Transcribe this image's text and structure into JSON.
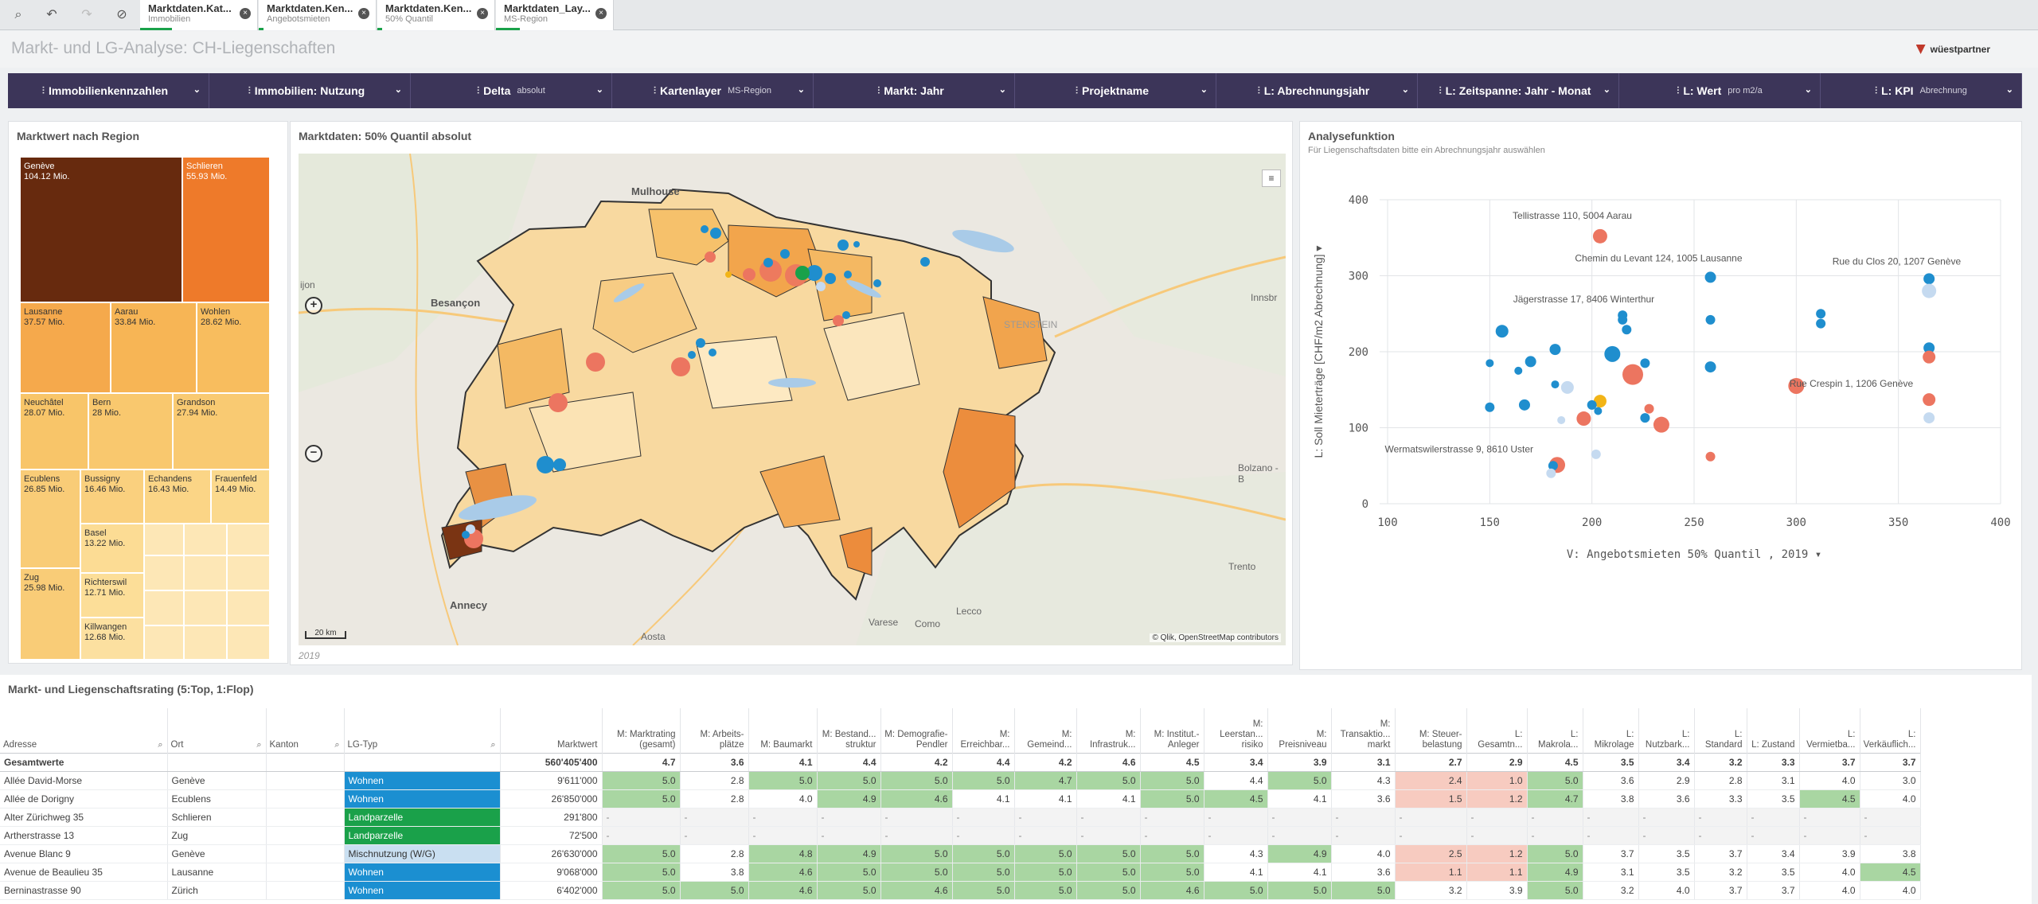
{
  "tabs": [
    {
      "title": "Marktdaten.Kat...",
      "sub": "Immobilien"
    },
    {
      "title": "Marktdaten.Ken...",
      "sub": "Angebotsmieten"
    },
    {
      "title": "Marktdaten.Ken...",
      "sub": "50% Quantil"
    },
    {
      "title": "Marktdaten_Lay...",
      "sub": "MS-Region"
    }
  ],
  "header": {
    "title": "Markt- und LG-Analyse: CH-Liegenschaften",
    "logo": "wüestpartner"
  },
  "filters": [
    {
      "label": "Immobilienkennzahlen",
      "sub": ""
    },
    {
      "label": "Immobilien: Nutzung",
      "sub": ""
    },
    {
      "label": "Delta",
      "sub": "absolut"
    },
    {
      "label": "Kartenlayer",
      "sub": "MS-Region"
    },
    {
      "label": "Markt: Jahr",
      "sub": ""
    },
    {
      "label": "Projektname",
      "sub": ""
    },
    {
      "label": "L: Abrechnungsjahr",
      "sub": ""
    },
    {
      "label": "L: Zeitspanne: Jahr - Monat",
      "sub": ""
    },
    {
      "label": "L: Wert",
      "sub": "pro m2/a"
    },
    {
      "label": "L: KPI",
      "sub": "Abrechnung"
    }
  ],
  "treemap": {
    "title": "Marktwert nach Region",
    "cells": [
      {
        "name": "Genève",
        "value": "104.12 Mio."
      },
      {
        "name": "Schlieren",
        "value": "55.93 Mio."
      },
      {
        "name": "Lausanne",
        "value": "37.57 Mio."
      },
      {
        "name": "Aarau",
        "value": "33.84 Mio."
      },
      {
        "name": "Wohlen",
        "value": "28.62 Mio."
      },
      {
        "name": "Neuchâtel",
        "value": "28.07 Mio."
      },
      {
        "name": "Bern",
        "value": "28 Mio."
      },
      {
        "name": "Grandson",
        "value": "27.94 Mio."
      },
      {
        "name": "Ecublens",
        "value": "26.85 Mio."
      },
      {
        "name": "Bussigny",
        "value": "16.46 Mio."
      },
      {
        "name": "Echandens",
        "value": "16.43 Mio."
      },
      {
        "name": "Frauenfeld",
        "value": "14.49 Mio."
      },
      {
        "name": "Basel",
        "value": "13.22 Mio."
      },
      {
        "name": "Zug",
        "value": "25.98 Mio."
      },
      {
        "name": "Richterswil",
        "value": "12.71 Mio."
      },
      {
        "name": "Killwangen",
        "value": "12.68 Mio."
      }
    ]
  },
  "map": {
    "title": "Marktdaten: 50% Quantil absolut",
    "footer": "2019",
    "attribution": "© Qlik, OpenStreetMap contributors",
    "scale": "20 km",
    "labels": [
      "Mulhouse",
      "Besançon",
      "Annecy",
      "Aosta",
      "Varese",
      "Como",
      "Lecco",
      "Bolzano - B",
      "Trento",
      "Innsbr",
      "ijon",
      "STENSTEIN"
    ]
  },
  "scatter": {
    "title": "Analysefunktion",
    "subtitle": "Für Liegenschaftsdaten bitte ein Abrechnungsjahr auswählen",
    "ylabel": "L: Soll Mieterträge [CHF/m2 Abrechnung]",
    "xlabel": "V: Angebotsmieten 50% Quantil , 2019",
    "annotations": [
      {
        "text": "Tellistrasse 110, 5004 Aarau"
      },
      {
        "text": "Chemin du Levant 124, 1005 Lausanne"
      },
      {
        "text": "Rue du Clos 20, 1207 Genève"
      },
      {
        "text": "Jägerstrasse 17, 8406 Winterthur"
      },
      {
        "text": "Rue Crespin 1, 1206 Genève"
      },
      {
        "text": "Wermatswilerstrasse 9, 8610 Uster"
      }
    ]
  },
  "chart_data": {
    "type": "scatter",
    "title": "Analysefunktion",
    "xlabel": "V: Angebotsmieten 50% Quantil , 2019",
    "ylabel": "L: Soll Mieterträge [CHF/m2 Abrechnung]",
    "xlim": [
      100,
      400
    ],
    "ylim": [
      0,
      400
    ],
    "xticks": [
      100,
      150,
      200,
      250,
      300,
      350,
      400
    ],
    "yticks": [
      0,
      100,
      200,
      300,
      400
    ],
    "grid": true,
    "points": [
      {
        "x": 204,
        "y": 352,
        "r": 9,
        "color": "#ec7560"
      },
      {
        "x": 258,
        "y": 298,
        "r": 7,
        "color": "#1f8ece"
      },
      {
        "x": 365,
        "y": 296,
        "r": 7,
        "color": "#1f8ece"
      },
      {
        "x": 365,
        "y": 280,
        "r": 9,
        "color": "#c5daf0"
      },
      {
        "x": 215,
        "y": 248,
        "r": 6,
        "color": "#1f8ece"
      },
      {
        "x": 215,
        "y": 242,
        "r": 6,
        "color": "#1f8ece"
      },
      {
        "x": 258,
        "y": 242,
        "r": 6,
        "color": "#1f8ece"
      },
      {
        "x": 312,
        "y": 250,
        "r": 6,
        "color": "#1f8ece"
      },
      {
        "x": 312,
        "y": 237,
        "r": 6,
        "color": "#1f8ece"
      },
      {
        "x": 217,
        "y": 229,
        "r": 6,
        "color": "#1f8ece"
      },
      {
        "x": 156,
        "y": 227,
        "r": 8,
        "color": "#1f8ece"
      },
      {
        "x": 182,
        "y": 203,
        "r": 7,
        "color": "#1f8ece"
      },
      {
        "x": 210,
        "y": 197,
        "r": 10,
        "color": "#1f8ece"
      },
      {
        "x": 365,
        "y": 205,
        "r": 7,
        "color": "#1f8ece"
      },
      {
        "x": 365,
        "y": 193,
        "r": 8,
        "color": "#ec7560"
      },
      {
        "x": 170,
        "y": 187,
        "r": 7,
        "color": "#1f8ece"
      },
      {
        "x": 150,
        "y": 185,
        "r": 5,
        "color": "#1f8ece"
      },
      {
        "x": 226,
        "y": 185,
        "r": 6,
        "color": "#1f8ece"
      },
      {
        "x": 258,
        "y": 180,
        "r": 7,
        "color": "#1f8ece"
      },
      {
        "x": 164,
        "y": 175,
        "r": 5,
        "color": "#1f8ece"
      },
      {
        "x": 220,
        "y": 170,
        "r": 13,
        "color": "#ec7560"
      },
      {
        "x": 182,
        "y": 157,
        "r": 5,
        "color": "#1f8ece"
      },
      {
        "x": 188,
        "y": 153,
        "r": 8,
        "color": "#c5daf0"
      },
      {
        "x": 300,
        "y": 155,
        "r": 10,
        "color": "#ec7560"
      },
      {
        "x": 365,
        "y": 137,
        "r": 8,
        "color": "#ec7560"
      },
      {
        "x": 204,
        "y": 135,
        "r": 8,
        "color": "#f2b417"
      },
      {
        "x": 200,
        "y": 130,
        "r": 6,
        "color": "#1f8ece"
      },
      {
        "x": 167,
        "y": 130,
        "r": 7,
        "color": "#1f8ece"
      },
      {
        "x": 150,
        "y": 127,
        "r": 6,
        "color": "#1f8ece"
      },
      {
        "x": 228,
        "y": 125,
        "r": 6,
        "color": "#ec7560"
      },
      {
        "x": 203,
        "y": 122,
        "r": 5,
        "color": "#1f8ece"
      },
      {
        "x": 226,
        "y": 113,
        "r": 6,
        "color": "#1f8ece"
      },
      {
        "x": 196,
        "y": 112,
        "r": 9,
        "color": "#ec7560"
      },
      {
        "x": 185,
        "y": 110,
        "r": 5,
        "color": "#c5daf0"
      },
      {
        "x": 234,
        "y": 104,
        "r": 10,
        "color": "#ec7560"
      },
      {
        "x": 365,
        "y": 113,
        "r": 7,
        "color": "#c5daf0"
      },
      {
        "x": 202,
        "y": 65,
        "r": 6,
        "color": "#c5daf0"
      },
      {
        "x": 258,
        "y": 62,
        "r": 6,
        "color": "#ec7560"
      },
      {
        "x": 183,
        "y": 51,
        "r": 10,
        "color": "#ec7560"
      },
      {
        "x": 181,
        "y": 50,
        "r": 6,
        "color": "#1f8ece"
      },
      {
        "x": 180,
        "y": 40,
        "r": 6,
        "color": "#c5daf0"
      }
    ],
    "labels": [
      {
        "x": 204,
        "y": 352,
        "text": "Tellistrasse 110, 5004 Aarau"
      },
      {
        "x": 258,
        "y": 298,
        "text": "Chemin du Levant 124, 1005 Lausanne"
      },
      {
        "x": 365,
        "y": 296,
        "text": "Rue du Clos 20, 1207 Genève"
      },
      {
        "x": 215,
        "y": 248,
        "text": "Jägerstrasse 17, 8406 Winterthur"
      },
      {
        "x": 365,
        "y": 137,
        "text": "Rue Crespin 1, 1206 Genève"
      },
      {
        "x": 183,
        "y": 51,
        "text": "Wermatswilerstrasse 9, 8610 Uster"
      }
    ]
  },
  "table": {
    "title": "Markt- und Liegenschaftsrating (5:Top, 1:Flop)",
    "columns": [
      "Adresse",
      "Ort",
      "Kanton",
      "LG-Typ",
      "Marktwert",
      "M: Marktrating (gesamt)",
      "M: Arbeits- plätze",
      "M: Baumarkt",
      "M: Bestand... struktur",
      "M: Demografie- Pendler",
      "M: Erreichbar...",
      "M: Gemeind...",
      "M: Infrastruk...",
      "M: Institut.- Anleger",
      "M: Leerstan... risiko",
      "M: Preisniveau",
      "M: Transaktio... markt",
      "M: Steuer- belastung",
      "L: Gesamtn...",
      "L: Makrola...",
      "L: Mikrolage",
      "L: Nutzbark...",
      "L: Standard",
      "L: Zustand",
      "L: Vermietba...",
      "L: Verkäuflich..."
    ],
    "total": [
      "Gesamtwerte",
      "",
      "",
      "",
      "560'405'400",
      "4.7",
      "3.6",
      "4.1",
      "4.4",
      "4.2",
      "4.4",
      "4.2",
      "4.6",
      "4.5",
      "3.4",
      "3.9",
      "3.1",
      "2.7",
      "2.9",
      "4.5",
      "3.5",
      "3.4",
      "3.2",
      "3.3",
      "3.7",
      "3.7"
    ],
    "rows": [
      [
        "Allée David-Morse",
        "Genève",
        "",
        "Wohnen",
        "9'611'000",
        "5.0",
        "2.8",
        "5.0",
        "5.0",
        "5.0",
        "5.0",
        "4.7",
        "5.0",
        "5.0",
        "4.4",
        "5.0",
        "4.3",
        "2.4",
        "1.0",
        "5.0",
        "3.6",
        "2.9",
        "2.8",
        "3.1",
        "4.0",
        "3.0"
      ],
      [
        "Allée de Dorigny",
        "Ecublens",
        "",
        "Wohnen",
        "26'850'000",
        "5.0",
        "2.8",
        "4.0",
        "4.9",
        "4.6",
        "4.1",
        "4.1",
        "4.1",
        "5.0",
        "4.5",
        "4.1",
        "3.6",
        "1.5",
        "1.2",
        "4.7",
        "3.8",
        "3.6",
        "3.3",
        "3.5",
        "4.5",
        "4.0"
      ],
      [
        "Alter Zürichweg 35",
        "Schlieren",
        "",
        "Landparzelle",
        "291'800",
        "-",
        "-",
        "-",
        "-",
        "-",
        "-",
        "-",
        "-",
        "-",
        "-",
        "-",
        "-",
        "-",
        "-",
        "-",
        "-",
        "-",
        "-",
        "-",
        "-",
        "-"
      ],
      [
        "Artherstrasse 13",
        "Zug",
        "",
        "Landparzelle",
        "72'500",
        "-",
        "-",
        "-",
        "-",
        "-",
        "-",
        "-",
        "-",
        "-",
        "-",
        "-",
        "-",
        "-",
        "-",
        "-",
        "-",
        "-",
        "-",
        "-",
        "-",
        "-"
      ],
      [
        "Avenue Blanc 9",
        "Genève",
        "",
        "Mischnutzung (W/G)",
        "26'630'000",
        "5.0",
        "2.8",
        "4.8",
        "4.9",
        "5.0",
        "5.0",
        "5.0",
        "5.0",
        "5.0",
        "4.3",
        "4.9",
        "4.0",
        "2.5",
        "1.2",
        "5.0",
        "3.7",
        "3.5",
        "3.7",
        "3.4",
        "3.9",
        "3.8"
      ],
      [
        "Avenue de Beaulieu 35",
        "Lausanne",
        "",
        "Wohnen",
        "9'068'000",
        "5.0",
        "3.8",
        "4.6",
        "5.0",
        "5.0",
        "5.0",
        "5.0",
        "5.0",
        "5.0",
        "4.1",
        "4.1",
        "3.6",
        "1.1",
        "1.1",
        "4.9",
        "3.1",
        "3.5",
        "3.2",
        "3.5",
        "4.0",
        "4.5"
      ],
      [
        "Berninastrasse 90",
        "Zürich",
        "",
        "Wohnen",
        "6'402'000",
        "5.0",
        "5.0",
        "4.6",
        "5.0",
        "4.6",
        "5.0",
        "5.0",
        "5.0",
        "4.6",
        "5.0",
        "5.0",
        "5.0",
        "3.2",
        "3.9",
        "5.0",
        "3.2",
        "4.0",
        "3.7",
        "3.7",
        "4.0",
        "4.0"
      ]
    ]
  }
}
